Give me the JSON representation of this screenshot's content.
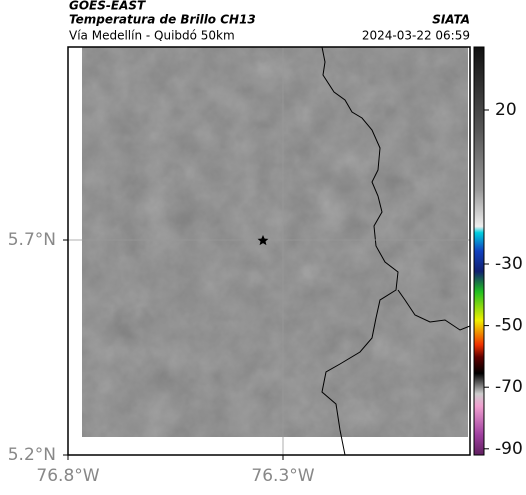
{
  "header": {
    "satellite": "GOES-EAST",
    "product": "Temperatura de Brillo CH13",
    "region": "Vía Medellín - Quibdó 50km",
    "source": "SIATA",
    "timestamp": "2024-03-22 06:59"
  },
  "map": {
    "lat_ticks": [
      {
        "value": 5.7,
        "label": "5.7°N"
      },
      {
        "value": 5.2,
        "label": "5.2°N"
      }
    ],
    "lon_ticks": [
      {
        "value": -76.8,
        "label": "76.8°W"
      },
      {
        "value": -76.3,
        "label": "76.3°W"
      }
    ]
  },
  "colorbar": {
    "ticks": [
      20,
      -30,
      -50,
      -70,
      -90
    ]
  }
}
